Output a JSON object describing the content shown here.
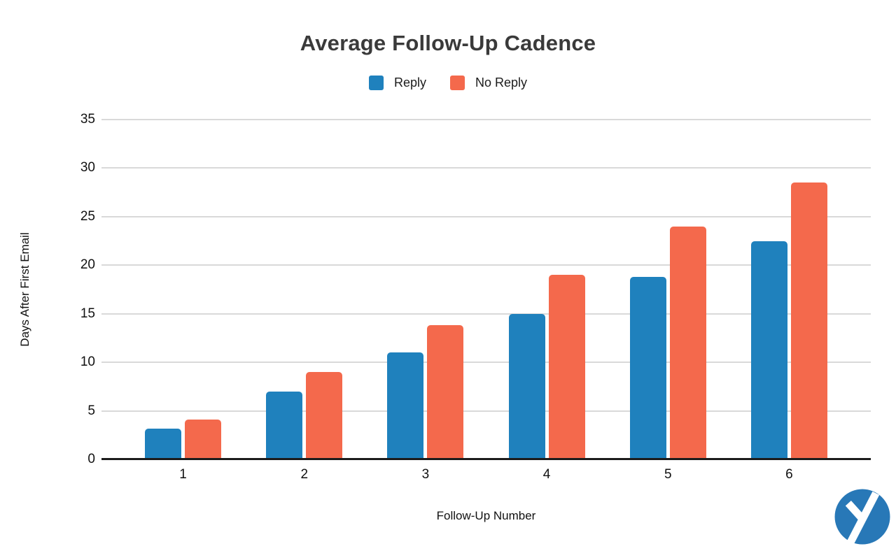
{
  "title": "Average Follow-Up Cadence",
  "legend": {
    "items": [
      {
        "label": "Reply",
        "color": "#1F81BD"
      },
      {
        "label": "No Reply",
        "color": "#F4694C"
      }
    ]
  },
  "chart_data": {
    "type": "bar",
    "title": "Average Follow-Up Cadence",
    "xlabel": "Follow-Up Number",
    "ylabel": "Days After First Email",
    "categories": [
      "1",
      "2",
      "3",
      "4",
      "5",
      "6"
    ],
    "series": [
      {
        "name": "Reply",
        "color": "#1F81BD",
        "values": [
          3.2,
          7,
          11,
          15,
          18.8,
          22.5
        ]
      },
      {
        "name": "No Reply",
        "color": "#F4694C",
        "values": [
          4.1,
          9,
          13.8,
          19,
          24,
          28.5
        ]
      }
    ],
    "ylim": [
      0,
      35
    ],
    "yticks": [
      0,
      5,
      10,
      15,
      20,
      25,
      30,
      35
    ],
    "grid": true,
    "legend_position": "top",
    "colors": {
      "gridline": "#d9d9d9",
      "axis_line": "#1c1c1c",
      "title_text": "#3a3a3a",
      "tick_text": "#111111"
    }
  },
  "logo": {
    "name": "yesware-mark",
    "letter": "y",
    "circle_color": "#2878B7",
    "letter_color": "#ffffff"
  }
}
